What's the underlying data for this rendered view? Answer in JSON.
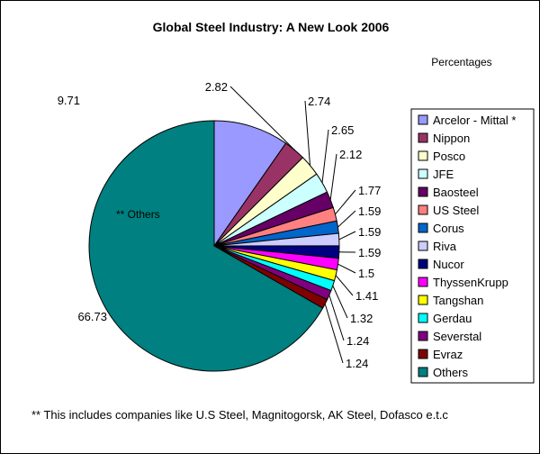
{
  "chart_data": {
    "type": "pie",
    "title": "Global Steel Industry: A New Look 2006",
    "subtitle": "Percentages",
    "slice_annotation": "** Others",
    "footnote": "** This includes companies like U.S Steel, Magnitogorsk, AK Steel, Dofasco e.t.c",
    "start_angle_deg": 0,
    "direction": "clockwise",
    "legend_position": "right",
    "slices": [
      {
        "label": "Arcelor -  Mittal *",
        "value": 9.71,
        "value_label": "9.71",
        "color": "#9999ff"
      },
      {
        "label": "Nippon",
        "value": 2.82,
        "value_label": "2.82",
        "color": "#993366"
      },
      {
        "label": "Posco",
        "value": 2.74,
        "value_label": "2.74",
        "color": "#ffffcc"
      },
      {
        "label": "JFE",
        "value": 2.65,
        "value_label": "2.65",
        "color": "#ccffff"
      },
      {
        "label": "Baosteel",
        "value": 2.12,
        "value_label": "2.12",
        "color": "#660066"
      },
      {
        "label": "US Steel",
        "value": 1.77,
        "value_label": "1.77",
        "color": "#ff8080"
      },
      {
        "label": "Corus",
        "value": 1.59,
        "value_label": "1.59",
        "color": "#0066cc"
      },
      {
        "label": "Riva",
        "value": 1.59,
        "value_label": "1.59",
        "color": "#ccccff"
      },
      {
        "label": "Nucor",
        "value": 1.59,
        "value_label": "1.59",
        "color": "#000080"
      },
      {
        "label": "ThyssenKrupp",
        "value": 1.5,
        "value_label": "1.5",
        "color": "#ff00ff"
      },
      {
        "label": "Tangshan",
        "value": 1.41,
        "value_label": "1.41",
        "color": "#ffff00"
      },
      {
        "label": "Gerdau",
        "value": 1.32,
        "value_label": "1.32",
        "color": "#00ffff"
      },
      {
        "label": "Severstal",
        "value": 1.24,
        "value_label": "1.24",
        "color": "#800080"
      },
      {
        "label": "Evraz",
        "value": 1.24,
        "value_label": "1.24",
        "color": "#800000"
      },
      {
        "label": "Others",
        "value": 66.73,
        "value_label": "66.73",
        "color": "#008080"
      }
    ]
  }
}
